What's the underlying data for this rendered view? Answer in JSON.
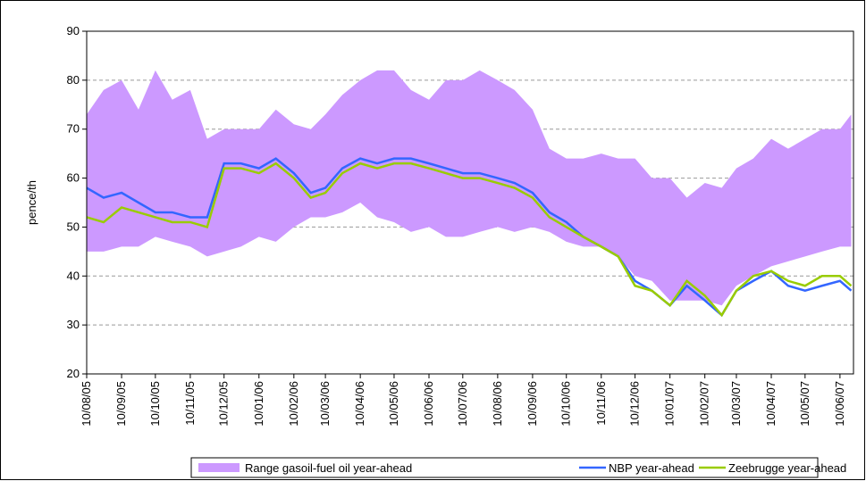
{
  "chart_data": {
    "type": "range-line",
    "y_label": "pence/th",
    "ylim": [
      20,
      90
    ],
    "yticks": [
      20,
      30,
      40,
      50,
      60,
      70,
      80,
      90
    ],
    "grid": true,
    "xlim": [
      "10/08/05",
      "22/06/07"
    ],
    "xticks": [
      "10/08/05",
      "10/09/05",
      "10/10/05",
      "10/11/05",
      "10/12/05",
      "10/01/06",
      "10/02/06",
      "10/03/06",
      "10/04/06",
      "10/05/06",
      "10/06/06",
      "10/07/06",
      "10/08/06",
      "10/09/06",
      "10/10/06",
      "10/11/06",
      "10/12/06",
      "10/01/07",
      "10/02/07",
      "10/03/07",
      "10/04/07",
      "10/05/07",
      "10/06/07"
    ],
    "legend": "bottom",
    "x": [
      "10/08/05",
      "25/08/05",
      "10/09/05",
      "25/09/05",
      "10/10/05",
      "25/10/05",
      "10/11/05",
      "25/11/05",
      "10/12/05",
      "25/12/05",
      "10/01/06",
      "25/01/06",
      "10/02/06",
      "25/02/06",
      "10/03/06",
      "25/03/06",
      "10/04/06",
      "25/04/06",
      "10/05/06",
      "25/05/06",
      "10/06/06",
      "25/06/06",
      "10/07/06",
      "25/07/06",
      "10/08/06",
      "25/08/06",
      "10/09/06",
      "25/09/06",
      "10/10/06",
      "25/10/06",
      "10/11/06",
      "25/11/06",
      "10/12/06",
      "25/12/06",
      "10/01/07",
      "25/01/07",
      "10/02/07",
      "25/02/07",
      "10/03/07",
      "25/03/07",
      "10/04/07",
      "25/04/07",
      "10/05/07",
      "25/05/07",
      "10/06/07",
      "20/06/07"
    ],
    "series": [
      {
        "name": "Range gasoil-fuel oil year-ahead",
        "color": "#cc99ff",
        "low": [
          45,
          45,
          46,
          46,
          48,
          47,
          46,
          44,
          45,
          46,
          48,
          47,
          50,
          52,
          52,
          53,
          55,
          52,
          51,
          49,
          50,
          48,
          48,
          49,
          50,
          49,
          50,
          49,
          47,
          46,
          46,
          44,
          40,
          39,
          35,
          35,
          35,
          34,
          38,
          40,
          42,
          43,
          44,
          45,
          46,
          46
        ],
        "high": [
          73,
          78,
          80,
          74,
          82,
          76,
          78,
          68,
          70,
          70,
          70,
          74,
          71,
          70,
          73,
          77,
          80,
          82,
          82,
          78,
          76,
          80,
          80,
          82,
          80,
          78,
          74,
          66,
          64,
          64,
          65,
          64,
          64,
          60,
          60,
          56,
          59,
          58,
          62,
          64,
          68,
          66,
          68,
          70,
          70,
          73
        ]
      },
      {
        "name": "NBP year-ahead",
        "color": "#3366ff",
        "values": [
          58,
          56,
          57,
          55,
          53,
          53,
          52,
          52,
          63,
          63,
          62,
          64,
          61,
          57,
          58,
          62,
          64,
          63,
          64,
          64,
          63,
          62,
          61,
          61,
          60,
          59,
          57,
          53,
          51,
          48,
          46,
          44,
          39,
          37,
          34,
          38,
          35,
          32,
          37,
          39,
          41,
          38,
          37,
          38,
          39,
          37
        ]
      },
      {
        "name": "Zeebrugge year-ahead",
        "color": "#99cc00",
        "values": [
          52,
          51,
          54,
          53,
          52,
          51,
          51,
          50,
          62,
          62,
          61,
          63,
          60,
          56,
          57,
          61,
          63,
          62,
          63,
          63,
          62,
          61,
          60,
          60,
          59,
          58,
          56,
          52,
          50,
          48,
          46,
          44,
          38,
          37,
          34,
          39,
          36,
          32,
          37,
          40,
          41,
          39,
          38,
          40,
          40,
          38
        ]
      }
    ]
  }
}
